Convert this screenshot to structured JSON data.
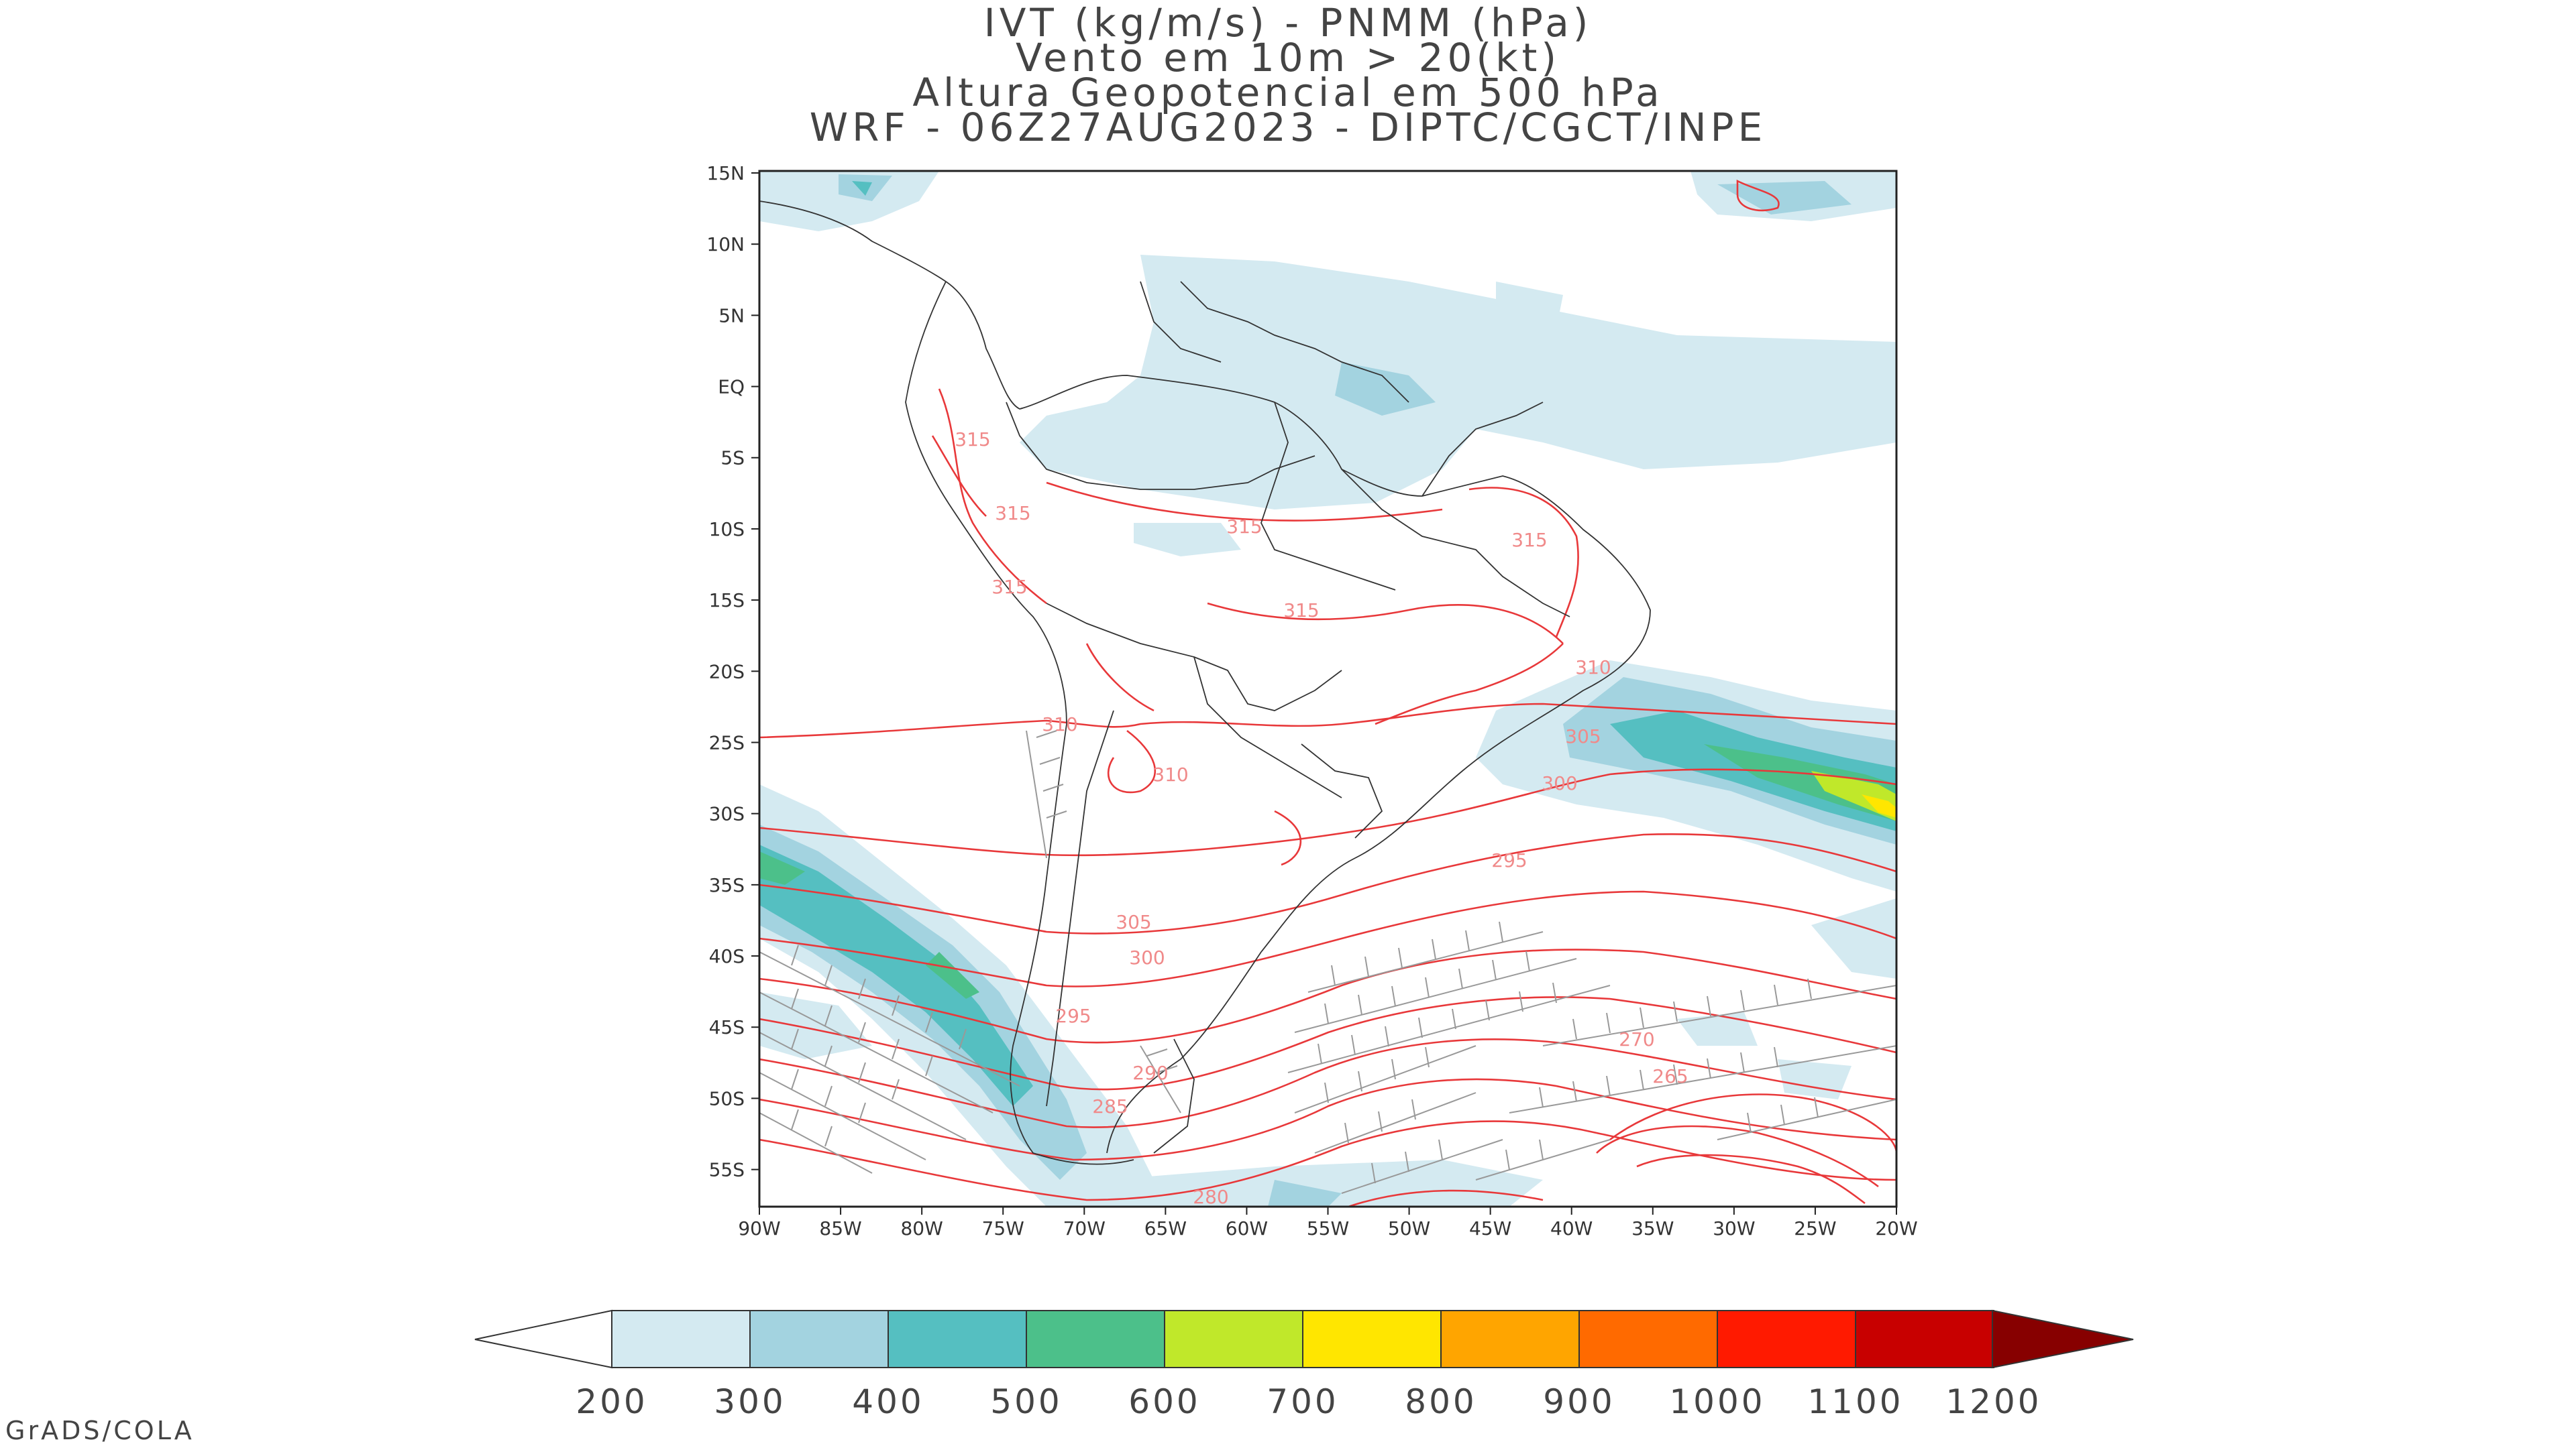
{
  "title_lines": [
    "IVT (kg/m/s) - PNMM (hPa)",
    "Vento em 10m > 20(kt)",
    "Altura Geopotencial em 500 hPa",
    "WRF - 06Z27AUG2023 - DIPTC/CGCT/INPE"
  ],
  "map": {
    "lat_labels": [
      "15N",
      "10N",
      "5N",
      "EQ",
      "5S",
      "10S",
      "15S",
      "20S",
      "25S",
      "30S",
      "35S",
      "40S",
      "45S",
      "50S",
      "55S"
    ],
    "lon_labels": [
      "90W",
      "85W",
      "80W",
      "75W",
      "70W",
      "65W",
      "60W",
      "55W",
      "50W",
      "45W",
      "40W",
      "35W",
      "30W",
      "25W",
      "20W"
    ],
    "contour_labels": [
      {
        "text": "315"
      },
      {
        "text": "315"
      },
      {
        "text": "315"
      },
      {
        "text": "315"
      },
      {
        "text": "315"
      },
      {
        "text": "315"
      },
      {
        "text": "310"
      },
      {
        "text": "310"
      },
      {
        "text": "310"
      },
      {
        "text": "305"
      },
      {
        "text": "300"
      },
      {
        "text": "295"
      },
      {
        "text": "305"
      },
      {
        "text": "300"
      },
      {
        "text": "295"
      },
      {
        "text": "290"
      },
      {
        "text": "285"
      },
      {
        "text": "280"
      },
      {
        "text": "270"
      },
      {
        "text": "265"
      }
    ],
    "colors": {
      "contour": "#e8383a",
      "contour_label": "#f08a8a",
      "border": "#333333",
      "barb": "#999999"
    }
  },
  "colorbar": {
    "labels": [
      "200",
      "300",
      "400",
      "500",
      "600",
      "700",
      "800",
      "900",
      "1000",
      "1100",
      "1200"
    ],
    "colors": [
      "#d4eaf1",
      "#a3d3e0",
      "#55bfc1",
      "#4cc08a",
      "#c0e82a",
      "#ffe600",
      "#ffa500",
      "#ff6a00",
      "#ff1a00",
      "#c80000",
      "#870000"
    ],
    "under_color": "#ffffff"
  },
  "footer": "GrADS/COLA"
}
